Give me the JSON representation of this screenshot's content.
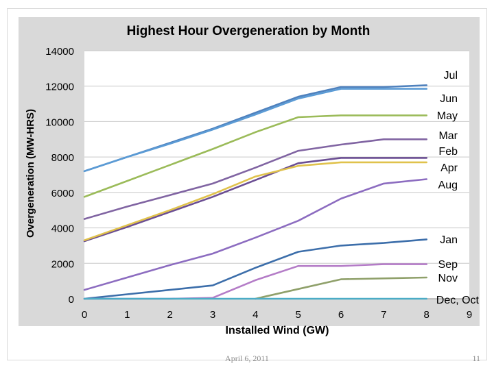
{
  "slide": {
    "footer_date": "April 6, 2011",
    "page_number": "11"
  },
  "chart_data": {
    "type": "line",
    "title": "Highest Hour Overgeneration by Month",
    "xlabel": "Installed Wind (GW)",
    "ylabel": "Overgeneration (MW-HRS)",
    "x": [
      0,
      1,
      2,
      3,
      4,
      5,
      6,
      7,
      8,
      9
    ],
    "xticks": [
      "0",
      "1",
      "2",
      "3",
      "4",
      "5",
      "6",
      "7",
      "8",
      "9"
    ],
    "yticks": [
      "0",
      "2000",
      "4000",
      "6000",
      "8000",
      "10000",
      "12000",
      "14000"
    ],
    "ylim": [
      0,
      14000
    ],
    "xlim": [
      0,
      9
    ],
    "grid": true,
    "series": [
      {
        "name": "Jul",
        "color": "#4f81bd",
        "values": [
          7200,
          8000,
          8800,
          9600,
          10500,
          11400,
          11950,
          11950,
          12050,
          null
        ]
      },
      {
        "name": "Jun",
        "color": "#5b9bd5",
        "values": [
          7200,
          8000,
          8750,
          9550,
          10400,
          11300,
          11850,
          11850,
          11850,
          null
        ]
      },
      {
        "name": "May",
        "color": "#9bbb59",
        "values": [
          5750,
          6650,
          7550,
          8450,
          9400,
          10250,
          10350,
          10350,
          10350,
          null
        ]
      },
      {
        "name": "Mar",
        "color": "#8064a2",
        "values": [
          4500,
          5200,
          5850,
          6500,
          7400,
          8350,
          8700,
          9000,
          9000,
          null
        ]
      },
      {
        "name": "Feb",
        "color": "#6b4e93",
        "values": [
          3250,
          4050,
          4900,
          5750,
          6700,
          7650,
          7950,
          7950,
          7950,
          null
        ]
      },
      {
        "name": "Apr",
        "color": "#e0c24c",
        "values": [
          3300,
          4150,
          5000,
          5900,
          6900,
          7500,
          7700,
          7700,
          7700,
          null
        ]
      },
      {
        "name": "Aug",
        "color": "#8c6cc0",
        "values": [
          500,
          1200,
          1900,
          2550,
          3450,
          4400,
          5650,
          6500,
          6750,
          null
        ]
      },
      {
        "name": "Jan",
        "color": "#3c6eaa",
        "values": [
          0,
          250,
          500,
          750,
          1750,
          2650,
          3000,
          3150,
          3350,
          null
        ]
      },
      {
        "name": "Sep",
        "color": "#b47cc7",
        "values": [
          0,
          0,
          0,
          50,
          1050,
          1850,
          1850,
          1950,
          1950,
          null
        ]
      },
      {
        "name": "Nov",
        "color": "#8fa06a",
        "values": [
          null,
          null,
          null,
          null,
          0,
          550,
          1100,
          1150,
          1200,
          null
        ]
      },
      {
        "name": "Dec, Oct",
        "color": "#4bacc6",
        "values": [
          0,
          0,
          0,
          0,
          0,
          0,
          0,
          0,
          0,
          null
        ]
      }
    ],
    "legend_labels": [
      "Jul",
      "Jun",
      "May",
      "Mar",
      "Feb",
      "Apr",
      "Aug",
      "Jan",
      "Sep",
      "Nov",
      "Dec, Oct"
    ]
  }
}
